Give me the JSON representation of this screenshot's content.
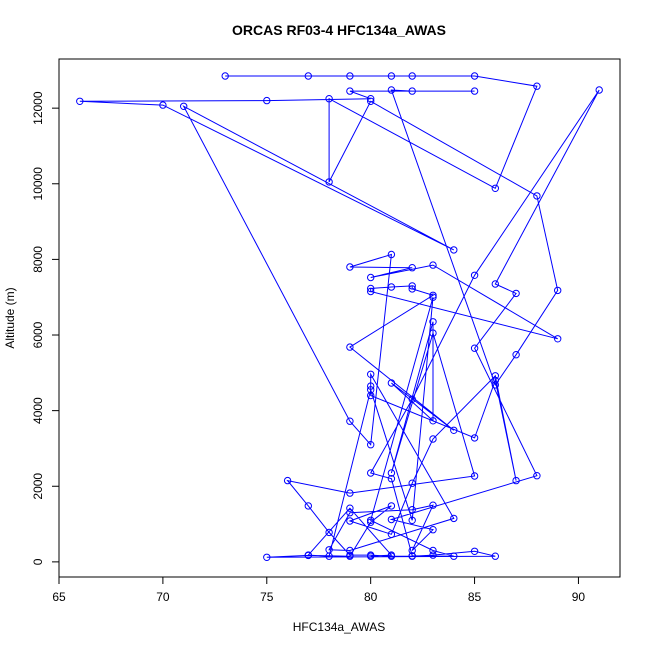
{
  "chart_data": {
    "type": "line",
    "title": "ORCAS RF03-4 HFC134a_AWAS",
    "xlabel": "HFC134a_AWAS",
    "ylabel": "Altitude (m)",
    "xlim": [
      65,
      92
    ],
    "ylim": [
      -400,
      13300
    ],
    "xticks": [
      65,
      70,
      75,
      80,
      85,
      90
    ],
    "yticks": [
      0,
      2000,
      4000,
      6000,
      8000,
      10000,
      12000
    ],
    "grid": false,
    "series_color": "#0000ff",
    "marker": "open-circle",
    "series": [
      {
        "points": [
          [
            73,
            12850
          ],
          [
            77,
            12850
          ],
          [
            79,
            12850
          ],
          [
            81,
            12850
          ],
          [
            82,
            12850
          ],
          [
            85,
            12850
          ],
          [
            88,
            12580
          ],
          [
            86,
            9880
          ],
          [
            78,
            12250
          ],
          [
            78,
            10050
          ],
          [
            80,
            12180
          ],
          [
            88,
            9680
          ],
          [
            89,
            7180
          ],
          [
            87,
            5480
          ],
          [
            86,
            4680
          ],
          [
            81,
            12480
          ],
          [
            82,
            12450
          ],
          [
            85,
            12450
          ],
          [
            79,
            12450
          ],
          [
            80,
            12250
          ],
          [
            75,
            12200
          ],
          [
            66,
            12180
          ],
          [
            70,
            12080
          ],
          [
            84,
            8250
          ],
          [
            71,
            12050
          ],
          [
            79,
            3720
          ],
          [
            80,
            3100
          ],
          [
            81,
            8130
          ],
          [
            79,
            7800
          ],
          [
            82,
            7780
          ],
          [
            80,
            7520
          ],
          [
            83,
            7850
          ],
          [
            89,
            5900
          ],
          [
            80,
            7150
          ],
          [
            80,
            7230
          ],
          [
            81,
            7270
          ],
          [
            82,
            7300
          ],
          [
            82,
            7220
          ],
          [
            83,
            7050
          ],
          [
            79,
            5680
          ],
          [
            84,
            3480
          ],
          [
            81,
            4730
          ],
          [
            83,
            3730
          ],
          [
            83,
            6350
          ],
          [
            81,
            2350
          ],
          [
            83,
            6050
          ],
          [
            85,
            2270
          ],
          [
            79,
            1820
          ],
          [
            76,
            2150
          ],
          [
            77,
            1480
          ],
          [
            78,
            780
          ],
          [
            79,
            180
          ],
          [
            80,
            180
          ],
          [
            81,
            150
          ],
          [
            82,
            150
          ],
          [
            83,
            180
          ],
          [
            85,
            280
          ],
          [
            86,
            150
          ],
          [
            75,
            120
          ],
          [
            77,
            170
          ],
          [
            79,
            150
          ],
          [
            80,
            1050
          ],
          [
            81,
            1480
          ],
          [
            79,
            1080
          ],
          [
            81,
            730
          ],
          [
            82,
            2080
          ],
          [
            83,
            3250
          ],
          [
            86,
            4920
          ],
          [
            87,
            2150
          ],
          [
            86,
            4800
          ],
          [
            85,
            3280
          ],
          [
            80,
            4400
          ],
          [
            80,
            4650
          ],
          [
            80,
            4960
          ],
          [
            84,
            1150
          ],
          [
            79,
            300
          ],
          [
            78,
            320
          ],
          [
            79,
            1300
          ],
          [
            82,
            1380
          ],
          [
            83,
            1500
          ],
          [
            82,
            300
          ],
          [
            83,
            850
          ],
          [
            81,
            1120
          ],
          [
            88,
            2280
          ],
          [
            85,
            5650
          ],
          [
            87,
            7100
          ],
          [
            86,
            7350
          ],
          [
            91,
            12480
          ],
          [
            85,
            7580
          ],
          [
            82,
            4300
          ],
          [
            80,
            2350
          ],
          [
            81,
            2200
          ],
          [
            82,
            160
          ],
          [
            84,
            150
          ],
          [
            83,
            300
          ],
          [
            80,
            1100
          ],
          [
            83,
            7000
          ],
          [
            82,
            1100
          ],
          [
            80,
            4550
          ],
          [
            78,
            150
          ],
          [
            77,
            180
          ],
          [
            79,
            1420
          ],
          [
            81,
            180
          ],
          [
            80,
            150
          ]
        ]
      }
    ]
  }
}
